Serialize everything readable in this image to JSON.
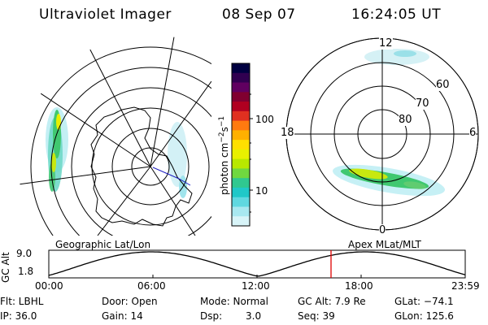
{
  "header": {
    "title": "Ultraviolet Imager",
    "date": "08 Sep 07",
    "time": "16:24:05 UT"
  },
  "colorbar": {
    "unit_label": "photon cm",
    "unit_exp1": "−2",
    "unit_mid": "s",
    "unit_exp2": "−1",
    "ticks": [
      "100",
      "10"
    ],
    "colors": [
      "#000040",
      "#300050",
      "#600060",
      "#800030",
      "#b00020",
      "#e03020",
      "#ff7a10",
      "#ffb000",
      "#ffe000",
      "#e8f000",
      "#b8e800",
      "#70d840",
      "#30c890",
      "#20c8c8",
      "#60d8e0",
      "#a8e8f0",
      "#d8f4f8"
    ]
  },
  "geo_map": {
    "label": "Geographic Lat/Lon"
  },
  "apex_map": {
    "label": "Apex MLat/MLT",
    "mlt_labels": {
      "top": "12",
      "bottom": "0",
      "left": "18",
      "right": "6"
    },
    "lat_labels": [
      "60",
      "70",
      "80"
    ]
  },
  "timeline": {
    "ylabel": "GC Alt",
    "yticks": [
      "9.0",
      "1.8"
    ],
    "xticks": [
      "00:00",
      "06:00",
      "12:00",
      "18:00",
      "23:59"
    ],
    "marker_color": "#e00000"
  },
  "status": {
    "flt": "Flt: LBHL",
    "ip": "IP: 36.0",
    "door": "Door: Open",
    "gain": "Gain: 14",
    "mode": "Mode: Normal",
    "dsp_label": "Dsp:",
    "dsp_value": "3.0",
    "gc_alt": "GC Alt: 7.9 Re",
    "seq": "Seq: 39",
    "glat": "GLat: −74.1",
    "glon": "GLon: 125.6"
  }
}
